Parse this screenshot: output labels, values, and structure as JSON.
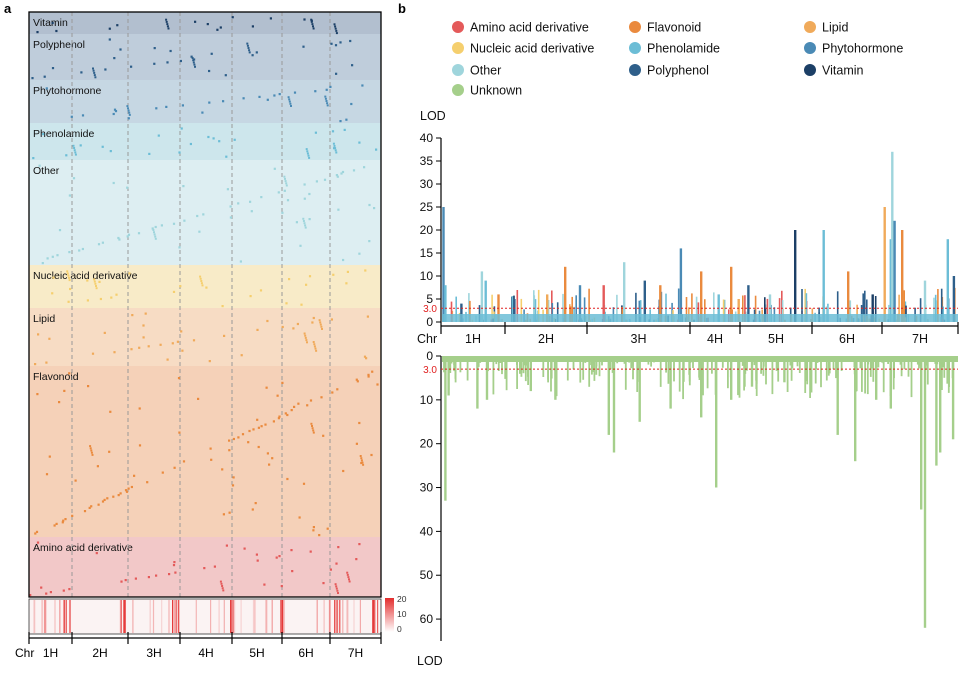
{
  "panel_labels": {
    "a": "a",
    "b": "b"
  },
  "colors": {
    "Amino acid derivative": "#e45a5a",
    "Flavonoid": "#ea8a3e",
    "Lipid": "#f0aa5a",
    "Nucleic acid derivative": "#f5cf6e",
    "Phenolamide": "#6cbdd6",
    "Phytohormone": "#4a8ab5",
    "Other": "#9fd5dc",
    "Polyphenol": "#2e5f8a",
    "Vitamin": "#1c3f66",
    "Unknown": "#a5cf8b",
    "threshold": "#e02020",
    "heatmap_high": "#e32d2d"
  },
  "chart_data": [
    {
      "id": "panel-a",
      "type": "scatter",
      "title": "a",
      "xlabel": "Chr",
      "x_categories": [
        "1H",
        "2H",
        "3H",
        "4H",
        "5H",
        "6H",
        "7H"
      ],
      "bands_top_to_bottom": [
        {
          "name": "Vitamin",
          "label": "Vitamin",
          "fill": "#b2bfcf"
        },
        {
          "name": "Polyphenol",
          "label": "Polyphenol",
          "fill": "#bfcddb"
        },
        {
          "name": "Phytohormone",
          "label": "Phytohormone",
          "fill": "#c6d7e3"
        },
        {
          "name": "Phenolamide",
          "label": "Phenolamide",
          "fill": "#cde6ec"
        },
        {
          "name": "Other",
          "label": "Other",
          "fill": "#ddeef2"
        },
        {
          "name": "Nucleic acid derivative",
          "label": "Nucleic acid derivative",
          "fill": "#f8ebc8"
        },
        {
          "name": "Lipid",
          "label": "Lipid",
          "fill": "#f7dcc4"
        },
        {
          "name": "Flavonoid",
          "label": "Flavonoid",
          "fill": "#f5d1b8"
        },
        {
          "name": "Amino acid derivative",
          "label": "Amino acid derivative",
          "fill": "#f2c8c8"
        }
      ],
      "heatmap": {
        "scale_ticks": [
          "20",
          "10",
          "0"
        ],
        "range": [
          0,
          20
        ]
      }
    },
    {
      "id": "panel-b-top",
      "type": "bar",
      "title": "b",
      "xlabel": "Chr",
      "ylabel": "LOD",
      "ylim": [
        0,
        40
      ],
      "yticks": [
        0,
        5,
        10,
        15,
        20,
        25,
        30,
        35,
        40
      ],
      "threshold": 3.0,
      "threshold_label": "3.0",
      "categories": [
        "1H",
        "2H",
        "3H",
        "4H",
        "5H",
        "6H",
        "7H"
      ],
      "legend": [
        "Amino acid derivative",
        "Flavonoid",
        "Lipid",
        "Nucleic acid derivative",
        "Phenolamide",
        "Phytohormone",
        "Other",
        "Polyphenol",
        "Vitamin",
        "Unknown"
      ],
      "peaks": [
        {
          "chr": "1H",
          "pos": 0.02,
          "lod": 25,
          "class": "Phytohormone"
        },
        {
          "chr": "1H",
          "pos": 0.05,
          "lod": 8,
          "class": "Phenolamide"
        },
        {
          "chr": "1H",
          "pos": 0.3,
          "lod": 4,
          "class": "Polyphenol"
        },
        {
          "chr": "1H",
          "pos": 0.62,
          "lod": 11,
          "class": "Other"
        },
        {
          "chr": "1H",
          "pos": 0.68,
          "lod": 9,
          "class": "Phenolamide"
        },
        {
          "chr": "1H",
          "pos": 0.88,
          "lod": 6,
          "class": "Flavonoid"
        },
        {
          "chr": "2H",
          "pos": 0.1,
          "lod": 5,
          "class": "Polyphenol"
        },
        {
          "chr": "2H",
          "pos": 0.5,
          "lod": 6,
          "class": "Lipid"
        },
        {
          "chr": "2H",
          "pos": 0.72,
          "lod": 12,
          "class": "Flavonoid"
        },
        {
          "chr": "2H",
          "pos": 0.9,
          "lod": 8,
          "class": "Phytohormone"
        },
        {
          "chr": "3H",
          "pos": 0.15,
          "lod": 8,
          "class": "Amino acid derivative"
        },
        {
          "chr": "3H",
          "pos": 0.35,
          "lod": 13,
          "class": "Other"
        },
        {
          "chr": "3H",
          "pos": 0.55,
          "lod": 9,
          "class": "Polyphenol"
        },
        {
          "chr": "3H",
          "pos": 0.7,
          "lod": 8,
          "class": "Flavonoid"
        },
        {
          "chr": "3H",
          "pos": 0.9,
          "lod": 16,
          "class": "Phytohormone"
        },
        {
          "chr": "4H",
          "pos": 0.2,
          "lod": 11,
          "class": "Flavonoid"
        },
        {
          "chr": "4H",
          "pos": 0.55,
          "lod": 6,
          "class": "Phenolamide"
        },
        {
          "chr": "4H",
          "pos": 0.8,
          "lod": 12,
          "class": "Flavonoid"
        },
        {
          "chr": "4H",
          "pos": 0.95,
          "lod": 5,
          "class": "Lipid"
        },
        {
          "chr": "5H",
          "pos": 0.1,
          "lod": 8,
          "class": "Polyphenol"
        },
        {
          "chr": "5H",
          "pos": 0.4,
          "lod": 6,
          "class": "Other"
        },
        {
          "chr": "5H",
          "pos": 0.75,
          "lod": 20,
          "class": "Vitamin"
        },
        {
          "chr": "6H",
          "pos": 0.15,
          "lod": 20,
          "class": "Phenolamide"
        },
        {
          "chr": "6H",
          "pos": 0.5,
          "lod": 11,
          "class": "Flavonoid"
        },
        {
          "chr": "6H",
          "pos": 0.85,
          "lod": 6,
          "class": "Vitamin"
        },
        {
          "chr": "7H",
          "pos": 0.02,
          "lod": 25,
          "class": "Lipid"
        },
        {
          "chr": "7H",
          "pos": 0.1,
          "lod": 18,
          "class": "Phenolamide"
        },
        {
          "chr": "7H",
          "pos": 0.12,
          "lod": 37,
          "class": "Other"
        },
        {
          "chr": "7H",
          "pos": 0.15,
          "lod": 22,
          "class": "Phytohormone"
        },
        {
          "chr": "7H",
          "pos": 0.25,
          "lod": 20,
          "class": "Flavonoid"
        },
        {
          "chr": "7H",
          "pos": 0.55,
          "lod": 9,
          "class": "Other"
        },
        {
          "chr": "7H",
          "pos": 0.85,
          "lod": 18,
          "class": "Phenolamide"
        },
        {
          "chr": "7H",
          "pos": 0.93,
          "lod": 10,
          "class": "Polyphenol"
        }
      ]
    },
    {
      "id": "panel-b-bottom",
      "type": "bar",
      "title": "",
      "xlabel": "",
      "ylabel": "LOD",
      "ylim": [
        0,
        65
      ],
      "yticks": [
        0,
        10,
        20,
        30,
        40,
        50,
        60
      ],
      "inverted": true,
      "threshold": 3.0,
      "threshold_label": "3.0",
      "series_name": "Unknown",
      "peaks": [
        {
          "chr": "1H",
          "pos": 0.05,
          "lod": 33
        },
        {
          "chr": "1H",
          "pos": 0.1,
          "lod": 9
        },
        {
          "chr": "1H",
          "pos": 0.55,
          "lod": 12
        },
        {
          "chr": "1H",
          "pos": 0.7,
          "lod": 10
        },
        {
          "chr": "2H",
          "pos": 0.3,
          "lod": 8
        },
        {
          "chr": "2H",
          "pos": 0.6,
          "lod": 10
        },
        {
          "chr": "3H",
          "pos": 0.2,
          "lod": 18
        },
        {
          "chr": "3H",
          "pos": 0.25,
          "lod": 22
        },
        {
          "chr": "3H",
          "pos": 0.5,
          "lod": 15
        },
        {
          "chr": "3H",
          "pos": 0.8,
          "lod": 12
        },
        {
          "chr": "4H",
          "pos": 0.2,
          "lod": 14
        },
        {
          "chr": "4H",
          "pos": 0.5,
          "lod": 30
        },
        {
          "chr": "4H",
          "pos": 0.8,
          "lod": 10
        },
        {
          "chr": "5H",
          "pos": 0.15,
          "lod": 7
        },
        {
          "chr": "5H",
          "pos": 0.6,
          "lod": 6
        },
        {
          "chr": "6H",
          "pos": 0.35,
          "lod": 18
        },
        {
          "chr": "6H",
          "pos": 0.6,
          "lod": 24
        },
        {
          "chr": "6H",
          "pos": 0.9,
          "lod": 10
        },
        {
          "chr": "7H",
          "pos": 0.1,
          "lod": 12
        },
        {
          "chr": "7H",
          "pos": 0.5,
          "lod": 35
        },
        {
          "chr": "7H",
          "pos": 0.55,
          "lod": 62
        },
        {
          "chr": "7H",
          "pos": 0.7,
          "lod": 25
        },
        {
          "chr": "7H",
          "pos": 0.75,
          "lod": 22
        },
        {
          "chr": "7H",
          "pos": 0.92,
          "lod": 19
        }
      ]
    }
  ]
}
